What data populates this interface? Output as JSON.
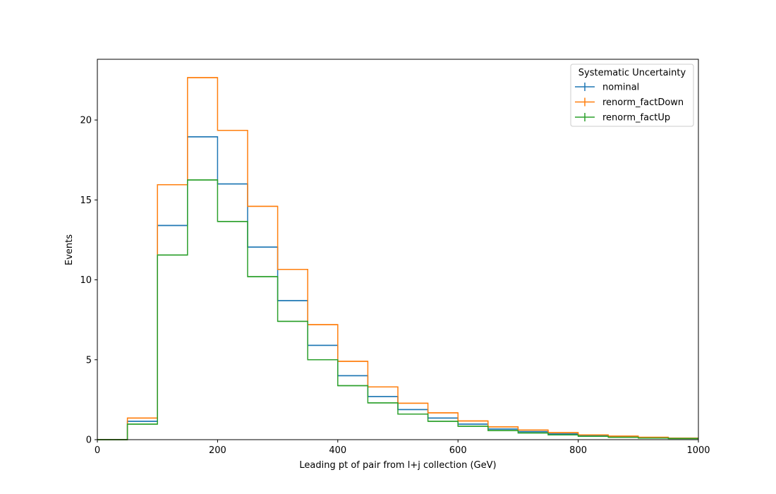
{
  "chart_data": {
    "type": "step",
    "xlabel": "Leading pt of pair from l+j collection (GeV)",
    "ylabel": "Events",
    "xlim": [
      0,
      1000
    ],
    "ylim": [
      0,
      23.8
    ],
    "xticks": [
      0,
      200,
      400,
      600,
      800,
      1000
    ],
    "yticks": [
      0,
      5,
      10,
      15,
      20
    ],
    "grid": false,
    "legend": {
      "title": "Systematic Uncertainty",
      "placement": "top-right"
    },
    "bin_edges": [
      0,
      50,
      100,
      150,
      200,
      250,
      300,
      350,
      400,
      450,
      500,
      550,
      600,
      650,
      700,
      750,
      800,
      850,
      900,
      950,
      1000
    ],
    "series": [
      {
        "name": "nominal",
        "color": "#1f77b4",
        "values": [
          0,
          1.15,
          13.4,
          18.95,
          16.0,
          12.05,
          8.7,
          5.9,
          4.0,
          2.7,
          1.88,
          1.35,
          0.97,
          0.66,
          0.5,
          0.36,
          0.25,
          0.18,
          0.12,
          0.08
        ]
      },
      {
        "name": "renorm_factDown",
        "color": "#ff7f0e",
        "values": [
          0,
          1.35,
          15.95,
          22.65,
          19.35,
          14.6,
          10.65,
          7.2,
          4.9,
          3.3,
          2.28,
          1.68,
          1.17,
          0.8,
          0.6,
          0.44,
          0.3,
          0.22,
          0.15,
          0.1
        ]
      },
      {
        "name": "renorm_factUp",
        "color": "#2ca02c",
        "values": [
          0,
          0.97,
          11.55,
          16.25,
          13.65,
          10.2,
          7.4,
          5.0,
          3.38,
          2.3,
          1.6,
          1.15,
          0.84,
          0.57,
          0.42,
          0.3,
          0.21,
          0.15,
          0.1,
          0.07
        ]
      }
    ]
  }
}
